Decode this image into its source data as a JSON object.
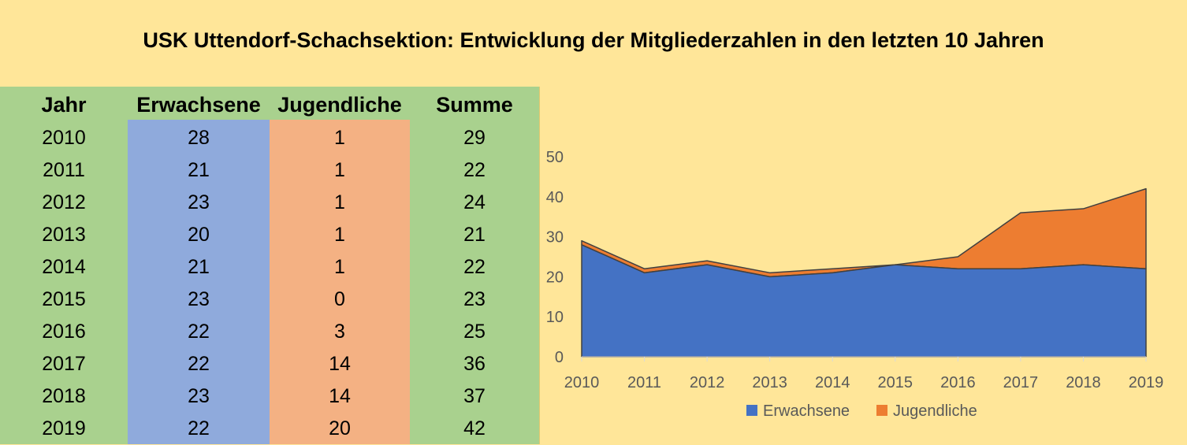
{
  "title": "USK Uttendorf-Schachsektion: Entwicklung der Mitgliederzahlen in den letzten 10 Jahren",
  "table": {
    "headers": [
      "Jahr",
      "Erwachsene",
      "Jugendliche",
      "Summe"
    ],
    "rows": [
      [
        "2010",
        "28",
        "1",
        "29"
      ],
      [
        "2011",
        "21",
        "1",
        "22"
      ],
      [
        "2012",
        "23",
        "1",
        "24"
      ],
      [
        "2013",
        "20",
        "1",
        "21"
      ],
      [
        "2014",
        "21",
        "1",
        "22"
      ],
      [
        "2015",
        "23",
        "0",
        "23"
      ],
      [
        "2016",
        "22",
        "3",
        "25"
      ],
      [
        "2017",
        "22",
        "14",
        "36"
      ],
      [
        "2018",
        "23",
        "14",
        "37"
      ],
      [
        "2019",
        "22",
        "20",
        "42"
      ]
    ]
  },
  "colors": {
    "erwachsene": "#4472c4",
    "jugendliche": "#ed7d31",
    "table_year_sum": "#a9d18e",
    "table_adult": "#8faadc",
    "table_youth": "#f4b183",
    "background": "#ffe699"
  },
  "chart_data": {
    "type": "area",
    "stacked": true,
    "categories": [
      "2010",
      "2011",
      "2012",
      "2013",
      "2014",
      "2015",
      "2016",
      "2017",
      "2018",
      "2019"
    ],
    "series": [
      {
        "name": "Erwachsene",
        "values": [
          28,
          21,
          23,
          20,
          21,
          23,
          22,
          22,
          23,
          22
        ],
        "color": "#4472c4"
      },
      {
        "name": "Jugendliche",
        "values": [
          1,
          1,
          1,
          1,
          1,
          0,
          3,
          14,
          14,
          20
        ],
        "color": "#ed7d31"
      }
    ],
    "title": "",
    "xlabel": "",
    "ylabel": "",
    "ylim": [
      0,
      50
    ],
    "yticks": [
      "0",
      "10",
      "20",
      "30",
      "40",
      "50"
    ],
    "grid": false,
    "legend": "bottom"
  }
}
